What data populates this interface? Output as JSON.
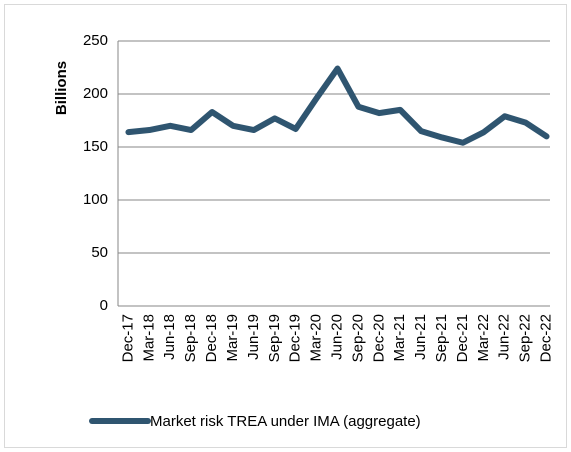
{
  "chart_data": {
    "type": "line",
    "y_axis_label": "Billions",
    "categories": [
      "Dec-17",
      "Mar-18",
      "Jun-18",
      "Sep-18",
      "Dec-18",
      "Mar-19",
      "Jun-19",
      "Sep-19",
      "Dec-19",
      "Mar-20",
      "Jun-20",
      "Sep-20",
      "Dec-20",
      "Mar-21",
      "Jun-21",
      "Sep-21",
      "Dec-21",
      "Mar-22",
      "Jun-22",
      "Sep-22",
      "Dec-22"
    ],
    "series": [
      {
        "name": "Market risk TREA under IMA (aggregate)",
        "color": "#2f5570",
        "values": [
          164,
          166,
          170,
          166,
          183,
          170,
          166,
          177,
          167,
          196,
          224,
          188,
          182,
          185,
          165,
          159,
          154,
          164,
          179,
          173,
          160
        ]
      }
    ],
    "ylim": [
      0,
      250
    ],
    "yticks": [
      0,
      50,
      100,
      150,
      200,
      250
    ],
    "grid": true,
    "legend": "bottom"
  }
}
